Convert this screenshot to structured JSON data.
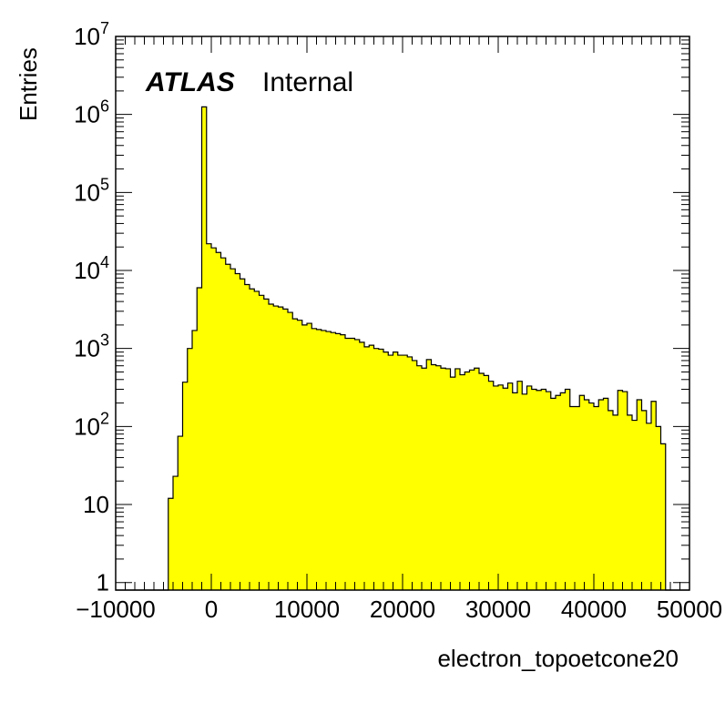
{
  "chart_data": {
    "type": "bar",
    "histogram": true,
    "xlabel": "electron_topoetcone20",
    "ylabel": "Entries",
    "xlim": [
      -10000,
      50000
    ],
    "ylim": [
      0.8,
      10000000
    ],
    "log_y": true,
    "grid": false,
    "fill_color": "#ffff00",
    "line_color": "#000000",
    "label_main": "ATLAS",
    "label_sub": "Internal",
    "x_ticks": [
      {
        "value": -10000,
        "label": "−10000"
      },
      {
        "value": 0,
        "label": "0"
      },
      {
        "value": 10000,
        "label": "10000"
      },
      {
        "value": 20000,
        "label": "20000"
      },
      {
        "value": 30000,
        "label": "30000"
      },
      {
        "value": 40000,
        "label": "40000"
      },
      {
        "value": 50000,
        "label": "50000"
      }
    ],
    "y_ticks": [
      {
        "value": 1,
        "base": "1",
        "exp": ""
      },
      {
        "value": 10,
        "base": "10",
        "exp": ""
      },
      {
        "value": 100,
        "base": "10",
        "exp": "2"
      },
      {
        "value": 1000,
        "base": "10",
        "exp": "3"
      },
      {
        "value": 10000,
        "base": "10",
        "exp": "4"
      },
      {
        "value": 100000,
        "base": "10",
        "exp": "5"
      },
      {
        "value": 1000000,
        "base": "10",
        "exp": "6"
      },
      {
        "value": 10000000,
        "base": "10",
        "exp": "7"
      }
    ],
    "bin_start": -10000,
    "bin_width": 500,
    "values": [
      0,
      0,
      0,
      0,
      0,
      0,
      0,
      0,
      0,
      0,
      0,
      12,
      23,
      75,
      370,
      1000,
      1700,
      6000,
      1250000,
      22000,
      19500,
      17000,
      14500,
      12000,
      10500,
      9100,
      7800,
      6600,
      5800,
      5400,
      4800,
      4300,
      3700,
      3500,
      3400,
      3200,
      2900,
      2400,
      2300,
      2000,
      2100,
      1800,
      1750,
      1700,
      1650,
      1600,
      1550,
      1500,
      1350,
      1350,
      1300,
      1200,
      1050,
      1100,
      1000,
      980,
      900,
      820,
      900,
      820,
      820,
      780,
      700,
      600,
      560,
      720,
      620,
      600,
      560,
      550,
      430,
      550,
      460,
      500,
      530,
      560,
      480,
      450,
      380,
      330,
      340,
      310,
      360,
      270,
      380,
      260,
      330,
      300,
      290,
      300,
      280,
      230,
      250,
      270,
      300,
      180,
      180,
      250,
      220,
      200,
      180,
      220,
      230,
      160,
      140,
      290,
      280,
      140,
      120,
      220,
      160,
      110,
      210,
      100,
      60,
      0,
      0,
      0,
      0,
      0
    ]
  }
}
